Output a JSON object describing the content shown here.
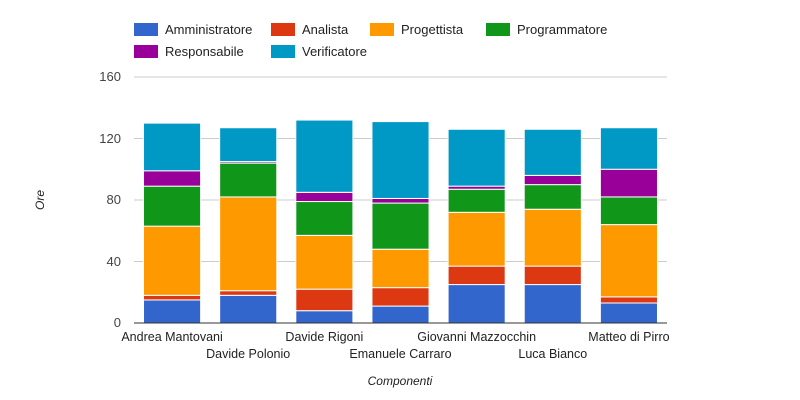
{
  "chart_data": {
    "type": "bar",
    "stacked": true,
    "title": "",
    "xlabel": "Componenti",
    "ylabel": "Ore",
    "ylim": [
      0,
      160
    ],
    "yticks": [
      0,
      40,
      80,
      120,
      160
    ],
    "grid": true,
    "legend_position": "top",
    "categories": [
      "Andrea Mantovani",
      "Davide Polonio",
      "Davide Rigoni",
      "Emanuele Carraro",
      "Giovanni Mazzocchin",
      "Luca Bianco",
      "Matteo di Pirro"
    ],
    "series": [
      {
        "name": "Amministratore",
        "color": "#3366cc",
        "values": [
          15,
          18,
          8,
          11,
          25,
          25,
          13
        ]
      },
      {
        "name": "Analista",
        "color": "#dc3912",
        "values": [
          3,
          3,
          14,
          12,
          12,
          12,
          4
        ]
      },
      {
        "name": "Progettista",
        "color": "#ff9900",
        "values": [
          45,
          61,
          35,
          25,
          35,
          37,
          47
        ]
      },
      {
        "name": "Programmatore",
        "color": "#109618",
        "values": [
          26,
          22,
          22,
          30,
          15,
          16,
          18
        ]
      },
      {
        "name": "Responsabile",
        "color": "#990099",
        "values": [
          10,
          1,
          6,
          3,
          2,
          6,
          18
        ]
      },
      {
        "name": "Verificatore",
        "color": "#0099c6",
        "values": [
          31,
          22,
          47,
          50,
          37,
          30,
          27
        ]
      }
    ]
  }
}
